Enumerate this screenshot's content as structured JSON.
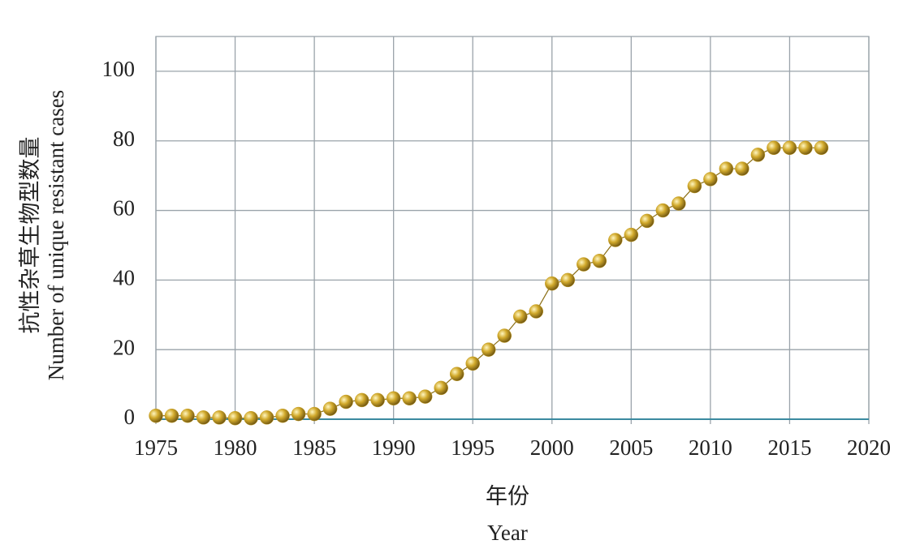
{
  "chart_data": {
    "type": "line",
    "y_label": "抗性杂草生物型数量",
    "y_label_en": "Number of unique resistant cases",
    "x_label": "年份",
    "x_label_en": "Year",
    "x": [
      1975,
      1976,
      1977,
      1978,
      1979,
      1980,
      1981,
      1982,
      1983,
      1984,
      1985,
      1986,
      1987,
      1988,
      1989,
      1990,
      1991,
      1992,
      1993,
      1994,
      1995,
      1996,
      1997,
      1998,
      1999,
      2000,
      2001,
      2002,
      2003,
      2004,
      2005,
      2006,
      2007,
      2008,
      2009,
      2010,
      2011,
      2012,
      2013,
      2014,
      2015,
      2016,
      2017
    ],
    "series": [
      {
        "color": "#c9a227",
        "values": [
          1,
          1,
          1,
          0.5,
          0.5,
          0.3,
          0.3,
          0.5,
          1,
          1.5,
          1.5,
          3,
          5,
          5.5,
          5.5,
          6,
          6,
          6.5,
          9,
          13,
          16,
          20,
          24,
          29.5,
          31,
          39,
          40,
          44.5,
          45.5,
          51.5,
          53,
          57,
          60,
          62,
          67,
          69,
          72,
          72,
          76,
          78,
          78,
          78,
          78
        ]
      }
    ],
    "xlim": [
      1975,
      2020
    ],
    "xticks": [
      1975,
      1980,
      1985,
      1990,
      1995,
      2000,
      2005,
      2010,
      2015,
      2020
    ],
    "ylim": [
      0,
      110
    ],
    "yticks": [
      0,
      20,
      40,
      60,
      80,
      100
    ],
    "grid": true
  }
}
